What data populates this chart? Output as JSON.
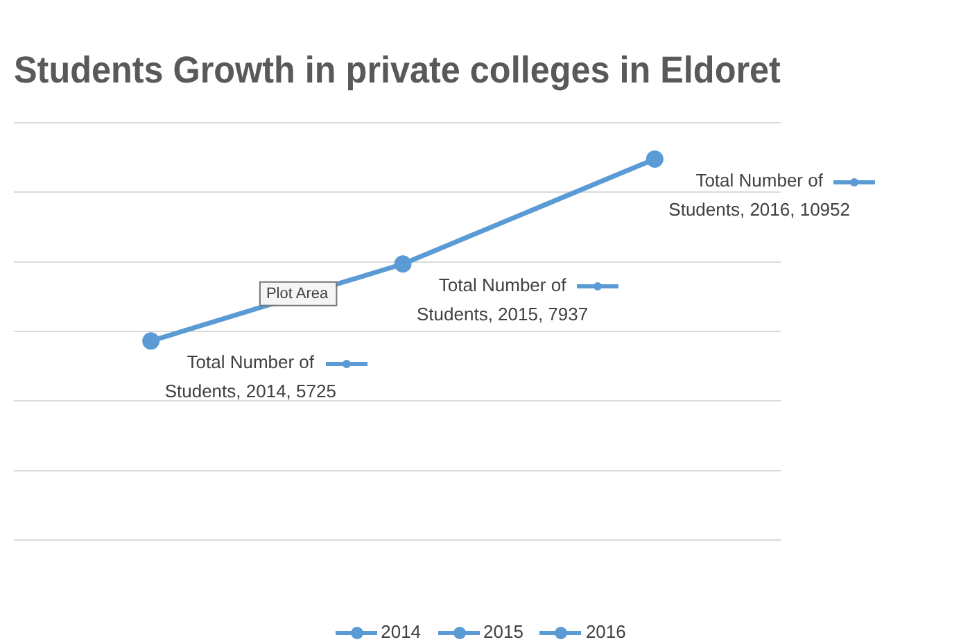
{
  "chart_data": {
    "type": "line",
    "title": "Students Growth in private colleges in Eldoret",
    "categories": [
      null,
      null,
      null
    ],
    "series": [
      {
        "color": "#5b9bd5",
        "values": [
          5725,
          7937,
          10952
        ],
        "value_labels": [
          "Total Number of Students, 2014, 5725",
          "Total Number of Students, 2015, 7937",
          "Total Number of Students, 2016, 10952"
        ]
      }
    ],
    "grid": "y",
    "marker": "circle",
    "line_style": "solid",
    "annotations": [
      "Plot Area",
      "2014",
      "2015",
      "2016"
    ]
  }
}
